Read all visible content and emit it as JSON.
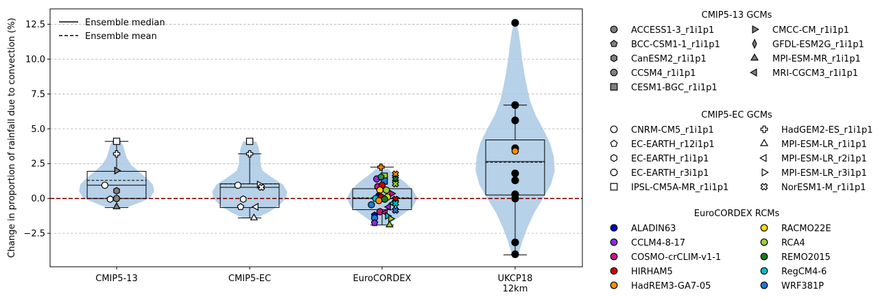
{
  "chart_data": {
    "type": "violin",
    "ylabel": "Change in proportion of rainfall due to convection (%)",
    "ylim": [
      -4.9,
      13.6
    ],
    "yticks": [
      -2.5,
      0.0,
      2.5,
      5.0,
      7.5,
      10.0,
      12.5
    ],
    "ytick_labels": [
      "−2.5",
      "0.0",
      "2.5",
      "5.0",
      "7.5",
      "10.0",
      "12.5"
    ],
    "grid": "y-dashed",
    "reference_line": {
      "y": 0.0,
      "style": "dashed",
      "color": "#8b0000"
    },
    "categories": [
      "CMIP5-13",
      "CMIP5-EC",
      "EuroCORDEX",
      "UKCP18\n12km"
    ],
    "summary": [
      {
        "category": "CMIP5-13",
        "q1": 0.0,
        "median": 0.95,
        "mean": 1.3,
        "q3": 1.95,
        "whisker_low": -0.65,
        "whisker_high": 4.1
      },
      {
        "category": "CMIP5-EC",
        "q1": -0.65,
        "median": 0.8,
        "mean": 1.05,
        "q3": 1.05,
        "whisker_low": -1.4,
        "whisker_high": 3.2
      },
      {
        "category": "EuroCORDEX",
        "q1": -0.8,
        "median": 0.0,
        "mean": 0.05,
        "q3": 0.7,
        "whisker_low": -1.9,
        "whisker_high": 2.25
      },
      {
        "category": "UKCP18\n12km",
        "q1": 0.25,
        "median": 2.65,
        "mean": 2.6,
        "q3": 4.2,
        "whisker_low": -4.05,
        "whisker_high": 6.7
      }
    ],
    "violins": [
      {
        "category": "CMIP5-13",
        "y": [
          -0.6,
          -0.3,
          0.0,
          0.5,
          1.0,
          1.4,
          1.9,
          2.4,
          2.9,
          3.4,
          3.8,
          4.1
        ],
        "halfwidth": [
          0.22,
          0.42,
          0.62,
          0.7,
          0.68,
          0.58,
          0.42,
          0.28,
          0.19,
          0.15,
          0.12,
          0.08
        ]
      },
      {
        "category": "CMIP5-EC",
        "y": [
          -1.4,
          -1.0,
          -0.5,
          0.0,
          0.5,
          1.0,
          1.5,
          2.0,
          2.5,
          3.0,
          3.6,
          4.1
        ],
        "halfwidth": [
          0.12,
          0.35,
          0.55,
          0.68,
          0.7,
          0.62,
          0.42,
          0.24,
          0.2,
          0.2,
          0.17,
          0.12
        ]
      },
      {
        "category": "EuroCORDEX",
        "y": [
          -1.9,
          -1.6,
          -1.1,
          -0.6,
          0.0,
          0.6,
          1.2,
          1.7,
          2.1
        ],
        "halfwidth": [
          0.08,
          0.22,
          0.4,
          0.58,
          0.66,
          0.58,
          0.42,
          0.24,
          0.12
        ]
      },
      {
        "category": "UKCP18\n12km",
        "y": [
          -4.0,
          -3.0,
          -2.0,
          -1.0,
          0.0,
          1.0,
          2.0,
          3.0,
          4.0,
          5.0,
          6.0,
          7.0,
          8.0,
          9.0,
          10.0,
          11.0,
          12.0,
          12.6
        ],
        "halfwidth": [
          0.06,
          0.14,
          0.24,
          0.36,
          0.52,
          0.67,
          0.74,
          0.72,
          0.65,
          0.52,
          0.38,
          0.28,
          0.22,
          0.17,
          0.13,
          0.1,
          0.06,
          0.02
        ]
      }
    ],
    "points": [
      {
        "category": "CMIP5-13",
        "x_offset": 0.0,
        "y": 4.1,
        "marker": "square",
        "fill": "#ffffff"
      },
      {
        "category": "CMIP5-13",
        "x_offset": 0.0,
        "y": 3.2,
        "marker": "plus",
        "fill": "#ffffff"
      },
      {
        "category": "CMIP5-13",
        "x_offset": 0.0,
        "y": 2.0,
        "marker": "triangle-right",
        "fill": "#808080"
      },
      {
        "category": "CMIP5-13",
        "x_offset": -0.22,
        "y": 0.95,
        "marker": "circle",
        "fill": "#ffffff"
      },
      {
        "category": "CMIP5-13",
        "x_offset": 0.0,
        "y": 0.55,
        "marker": "hexagon",
        "fill": "#808080"
      },
      {
        "category": "CMIP5-13",
        "x_offset": -0.12,
        "y": -0.05,
        "marker": "hexagon",
        "fill": "#ffffff"
      },
      {
        "category": "CMIP5-13",
        "x_offset": 0.0,
        "y": 0.0,
        "marker": "circle",
        "fill": "#808080"
      },
      {
        "category": "CMIP5-13",
        "x_offset": 0.0,
        "y": -0.6,
        "marker": "triangle-up",
        "fill": "#808080"
      },
      {
        "category": "CMIP5-EC",
        "x_offset": 0.0,
        "y": 4.1,
        "marker": "square",
        "fill": "#ffffff"
      },
      {
        "category": "CMIP5-EC",
        "x_offset": 0.0,
        "y": 3.2,
        "marker": "plus",
        "fill": "#ffffff"
      },
      {
        "category": "CMIP5-EC",
        "x_offset": 0.18,
        "y": 1.0,
        "marker": "triangle-right",
        "fill": "#ffffff"
      },
      {
        "category": "CMIP5-EC",
        "x_offset": 0.22,
        "y": 0.8,
        "marker": "cross",
        "fill": "#ffffff"
      },
      {
        "category": "CMIP5-EC",
        "x_offset": -0.22,
        "y": 0.95,
        "marker": "circle",
        "fill": "#ffffff"
      },
      {
        "category": "CMIP5-EC",
        "x_offset": -0.12,
        "y": -0.05,
        "marker": "hexagon",
        "fill": "#ffffff"
      },
      {
        "category": "CMIP5-EC",
        "x_offset": -0.17,
        "y": -0.6,
        "marker": "pentagon",
        "fill": "#ffffff"
      },
      {
        "category": "CMIP5-EC",
        "x_offset": 0.12,
        "y": -0.6,
        "marker": "triangle-left",
        "fill": "#ffffff"
      },
      {
        "category": "CMIP5-EC",
        "x_offset": 0.08,
        "y": -1.4,
        "marker": "triangle-up",
        "fill": "#ffffff"
      },
      {
        "category": "EuroCORDEX",
        "x_offset": -0.02,
        "y": 2.25,
        "marker": "plus",
        "fill": "#ff8c00"
      },
      {
        "category": "EuroCORDEX",
        "x_offset": 0.25,
        "y": 1.75,
        "marker": "cross",
        "fill": "#ff8c00"
      },
      {
        "category": "EuroCORDEX",
        "x_offset": 0.25,
        "y": 1.4,
        "marker": "cross",
        "fill": "#1a7a1a"
      },
      {
        "category": "EuroCORDEX",
        "x_offset": 0.25,
        "y": 1.05,
        "marker": "cross",
        "fill": "#9acd32"
      },
      {
        "category": "EuroCORDEX",
        "x_offset": 0.04,
        "y": 1.6,
        "marker": "square",
        "fill": "#9acd32"
      },
      {
        "category": "EuroCORDEX",
        "x_offset": 0.04,
        "y": 1.25,
        "marker": "square",
        "fill": "#1e78d2"
      },
      {
        "category": "EuroCORDEX",
        "x_offset": -0.1,
        "y": 1.4,
        "marker": "circle",
        "fill": "#8a2be2"
      },
      {
        "category": "EuroCORDEX",
        "x_offset": -0.02,
        "y": 1.55,
        "marker": "pentagon",
        "fill": "#2e8b57"
      },
      {
        "category": "EuroCORDEX",
        "x_offset": -0.08,
        "y": 0.85,
        "marker": "circle",
        "fill": "#c71585"
      },
      {
        "category": "EuroCORDEX",
        "x_offset": 0.0,
        "y": 0.95,
        "marker": "circle",
        "fill": "#d00000"
      },
      {
        "category": "EuroCORDEX",
        "x_offset": -0.04,
        "y": 0.6,
        "marker": "circle",
        "fill": "#ffd700"
      },
      {
        "category": "EuroCORDEX",
        "x_offset": 0.08,
        "y": 0.6,
        "marker": "circle",
        "fill": "#9acd32"
      },
      {
        "category": "EuroCORDEX",
        "x_offset": 0.18,
        "y": 0.35,
        "marker": "triangle-right",
        "fill": "#c71585"
      },
      {
        "category": "EuroCORDEX",
        "x_offset": -0.06,
        "y": 0.2,
        "marker": "circle",
        "fill": "#0000cd"
      },
      {
        "category": "EuroCORDEX",
        "x_offset": -0.02,
        "y": 0.1,
        "marker": "circle",
        "fill": "#d00000"
      },
      {
        "category": "EuroCORDEX",
        "x_offset": 0.1,
        "y": 0.1,
        "marker": "circle",
        "fill": "#ffd700"
      },
      {
        "category": "EuroCORDEX",
        "x_offset": -0.12,
        "y": 0.0,
        "marker": "circle",
        "fill": "#00c0c0"
      },
      {
        "category": "EuroCORDEX",
        "x_offset": 0.05,
        "y": -0.05,
        "marker": "circle",
        "fill": "#1a7a1a"
      },
      {
        "category": "EuroCORDEX",
        "x_offset": 0.25,
        "y": -0.05,
        "marker": "cross",
        "fill": "#d00000"
      },
      {
        "category": "EuroCORDEX",
        "x_offset": -0.06,
        "y": -0.15,
        "marker": "circle",
        "fill": "#ff8c00"
      },
      {
        "category": "EuroCORDEX",
        "x_offset": -0.2,
        "y": -0.45,
        "marker": "circle",
        "fill": "#1e78d2"
      },
      {
        "category": "EuroCORDEX",
        "x_offset": 0.2,
        "y": -0.35,
        "marker": "triangle-left",
        "fill": "#00c0c0"
      },
      {
        "category": "EuroCORDEX",
        "x_offset": 0.25,
        "y": -0.35,
        "marker": "cross",
        "fill": "#00c0c0"
      },
      {
        "category": "EuroCORDEX",
        "x_offset": 0.12,
        "y": -0.6,
        "marker": "triangle-left",
        "fill": "#8a2be2"
      },
      {
        "category": "EuroCORDEX",
        "x_offset": 0.25,
        "y": -0.85,
        "marker": "cross",
        "fill": "#1e78d2"
      },
      {
        "category": "EuroCORDEX",
        "x_offset": -0.04,
        "y": -0.95,
        "marker": "circle",
        "fill": "#c71585"
      },
      {
        "category": "EuroCORDEX",
        "x_offset": 0.06,
        "y": -1.0,
        "marker": "triangle-left",
        "fill": "#c71585"
      },
      {
        "category": "EuroCORDEX",
        "x_offset": -0.14,
        "y": -1.2,
        "marker": "pentagon",
        "fill": "#0000cd"
      },
      {
        "category": "EuroCORDEX",
        "x_offset": -0.14,
        "y": -1.4,
        "marker": "circle",
        "fill": "#1e78d2"
      },
      {
        "category": "EuroCORDEX",
        "x_offset": 0.1,
        "y": -1.25,
        "marker": "triangle-right",
        "fill": "#00c0c0"
      },
      {
        "category": "EuroCORDEX",
        "x_offset": 0.16,
        "y": -1.45,
        "marker": "triangle-right",
        "fill": "#9acd32"
      },
      {
        "category": "EuroCORDEX",
        "x_offset": -0.14,
        "y": -1.75,
        "marker": "pentagon",
        "fill": "#8a2be2"
      },
      {
        "category": "EuroCORDEX",
        "x_offset": 0.14,
        "y": -1.9,
        "marker": "triangle-up",
        "fill": "#9acd32"
      },
      {
        "category": "UKCP18\n12km",
        "x_offset": 0.0,
        "y": 12.6,
        "marker": "circle",
        "fill": "#000000"
      },
      {
        "category": "UKCP18\n12km",
        "x_offset": 0.0,
        "y": 6.7,
        "marker": "circle",
        "fill": "#000000"
      },
      {
        "category": "UKCP18\n12km",
        "x_offset": 0.0,
        "y": 5.6,
        "marker": "circle",
        "fill": "#000000"
      },
      {
        "category": "UKCP18\n12km",
        "x_offset": 0.0,
        "y": 3.6,
        "marker": "circle",
        "fill": "#000000"
      },
      {
        "category": "UKCP18\n12km",
        "x_offset": 0.0,
        "y": 3.4,
        "marker": "circle",
        "fill": "#ff8c00"
      },
      {
        "category": "UKCP18\n12km",
        "x_offset": 0.0,
        "y": 1.8,
        "marker": "circle",
        "fill": "#000000"
      },
      {
        "category": "UKCP18\n12km",
        "x_offset": 0.0,
        "y": 1.3,
        "marker": "circle",
        "fill": "#000000"
      },
      {
        "category": "UKCP18\n12km",
        "x_offset": 0.0,
        "y": 0.3,
        "marker": "circle",
        "fill": "#000000"
      },
      {
        "category": "UKCP18\n12km",
        "x_offset": 0.0,
        "y": 0.0,
        "marker": "circle",
        "fill": "#000000"
      },
      {
        "category": "UKCP18\n12km",
        "x_offset": 0.0,
        "y": -3.15,
        "marker": "circle",
        "fill": "#000000"
      },
      {
        "category": "UKCP18\n12km",
        "x_offset": 0.0,
        "y": -4.0,
        "marker": "circle",
        "fill": "#000000"
      }
    ],
    "line_legend": [
      {
        "label": "Ensemble median",
        "style": "solid"
      },
      {
        "label": "Ensemble mean",
        "style": "dashed"
      }
    ],
    "legend_groups": [
      {
        "title": "CMIP5-13 GCMs",
        "items": [
          {
            "label": "ACCESS1-3_r1i1p1",
            "marker": "circle",
            "fill": "#808080"
          },
          {
            "label": "BCC-CSM1-1_r1i1p1",
            "marker": "pentagon",
            "fill": "#808080"
          },
          {
            "label": "CanESM2_r1i1p1",
            "marker": "hexagon",
            "fill": "#808080"
          },
          {
            "label": "CCSM4_r1i1p1",
            "marker": "octagon",
            "fill": "#808080"
          },
          {
            "label": "CESM1-BGC_r1i1p1",
            "marker": "square",
            "fill": "#808080"
          },
          {
            "label": "CMCC-CM_r1i1p1",
            "marker": "triangle-right",
            "fill": "#808080"
          },
          {
            "label": "GFDL-ESM2G_r1i1p1",
            "marker": "thin-diamond",
            "fill": "#808080"
          },
          {
            "label": "MPI-ESM-MR_r1i1p1",
            "marker": "triangle-up",
            "fill": "#808080"
          },
          {
            "label": "MRI-CGCM3_r1i1p1",
            "marker": "triangle-left",
            "fill": "#808080"
          }
        ]
      },
      {
        "title": "CMIP5-EC GCMs",
        "items": [
          {
            "label": "CNRM-CM5_r1i1p1",
            "marker": "circle",
            "fill": "#ffffff"
          },
          {
            "label": "EC-EARTH_r12i1p1",
            "marker": "pentagon",
            "fill": "#ffffff"
          },
          {
            "label": "EC-EARTH_r1i1p1",
            "marker": "hexagon",
            "fill": "#ffffff"
          },
          {
            "label": "EC-EARTH_r3i1p1",
            "marker": "octagon",
            "fill": "#ffffff"
          },
          {
            "label": "IPSL-CM5A-MR_r1i1p1",
            "marker": "square",
            "fill": "#ffffff"
          },
          {
            "label": "HadGEM2-ES_r1i1p1",
            "marker": "plus",
            "fill": "#ffffff"
          },
          {
            "label": "MPI-ESM-LR_r1i1p1",
            "marker": "triangle-up",
            "fill": "#ffffff"
          },
          {
            "label": "MPI-ESM-LR_r2i1p1",
            "marker": "triangle-left",
            "fill": "#ffffff"
          },
          {
            "label": "MPI-ESM-LR_r3i1p1",
            "marker": "triangle-right",
            "fill": "#ffffff"
          },
          {
            "label": "NorESM1-M_r1i1p1",
            "marker": "cross",
            "fill": "#ffffff"
          }
        ]
      },
      {
        "title": "EuroCORDEX RCMs",
        "items": [
          {
            "label": "ALADIN63",
            "marker": "circle",
            "fill": "#0000cd"
          },
          {
            "label": "CCLM4-8-17",
            "marker": "circle",
            "fill": "#8a2be2"
          },
          {
            "label": "COSMO-crCLIM-v1-1",
            "marker": "circle",
            "fill": "#c71585"
          },
          {
            "label": "HIRHAM5",
            "marker": "circle",
            "fill": "#d00000"
          },
          {
            "label": "HadREM3-GA7-05",
            "marker": "circle",
            "fill": "#ff8c00"
          },
          {
            "label": "RACMO22E",
            "marker": "circle",
            "fill": "#ffd700"
          },
          {
            "label": "RCA4",
            "marker": "circle",
            "fill": "#9acd32"
          },
          {
            "label": "REMO2015",
            "marker": "circle",
            "fill": "#1a7a1a"
          },
          {
            "label": "RegCM4-6",
            "marker": "circle",
            "fill": "#00c0c0"
          },
          {
            "label": "WRF381P",
            "marker": "circle",
            "fill": "#1e78d2"
          }
        ]
      }
    ],
    "colors": {
      "violin": "#a9c9e4",
      "grid": "#b0b0b0",
      "zero_line": "#8b0000"
    }
  }
}
